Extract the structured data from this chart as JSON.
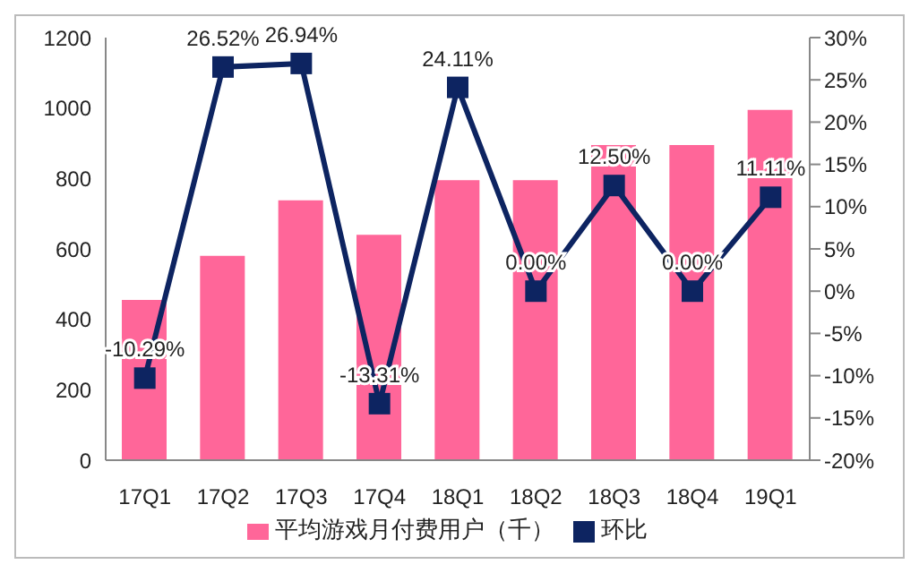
{
  "chart_data": {
    "type": "bar",
    "categories": [
      "17Q1",
      "17Q2",
      "17Q3",
      "17Q4",
      "18Q1",
      "18Q2",
      "18Q3",
      "18Q4",
      "19Q1"
    ],
    "series": [
      {
        "name": "平均游戏月付费用户（千）",
        "color": "#ff6699",
        "values": [
          455,
          580,
          738,
          640,
          795,
          795,
          895,
          895,
          995
        ]
      },
      {
        "name": "环比",
        "type": "line",
        "axis": "y2",
        "color": "#0d2461",
        "marker": "square",
        "values": [
          -10.29,
          26.52,
          26.94,
          -13.31,
          24.11,
          0,
          12.5,
          0,
          11.11
        ],
        "value_labels": [
          "-10.29%",
          "26.52%",
          "26.94%",
          "-13.31%",
          "24.11%",
          "0.00%",
          "12.50%",
          "0.00%",
          "11.11%"
        ]
      }
    ],
    "ylim": [
      0,
      1200
    ],
    "yticks": [
      0,
      200,
      400,
      600,
      800,
      1000,
      1200
    ],
    "y2lim": [
      -20,
      30
    ],
    "y2ticks": [
      {
        "value": -20,
        "label": "-20%"
      },
      {
        "value": -15,
        "label": "-15%"
      },
      {
        "value": -10,
        "label": "-10%"
      },
      {
        "value": -5,
        "label": "-5%"
      },
      {
        "value": 0,
        "label": "0%"
      },
      {
        "value": 5,
        "label": "5%"
      },
      {
        "value": 10,
        "label": "10%"
      },
      {
        "value": 15,
        "label": "15%"
      },
      {
        "value": 20,
        "label": "20%"
      },
      {
        "value": 25,
        "label": "25%"
      },
      {
        "value": 30,
        "label": "30%"
      }
    ],
    "grid": false,
    "legend": "bottom"
  }
}
